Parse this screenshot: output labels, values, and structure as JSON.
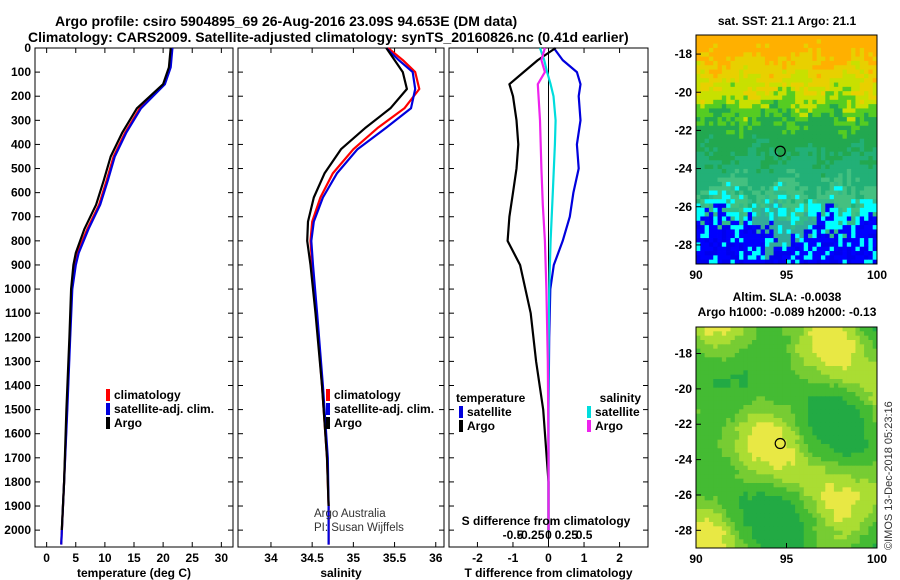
{
  "header": {
    "line1": "Argo profile: csiro 5904895_69 26-Aug-2016 23.09S 94.653E (DM data)",
    "line2": "Climatology: CARS2009. Satellite-adjusted climatology: synTS_20160826.nc (0.41d earlier)"
  },
  "colors": {
    "climatology": "#ff0000",
    "satellite": "#0000dd",
    "argo": "#000000",
    "satellite_salinity": "#00dddd",
    "argo_salinity": "#ee22ee"
  },
  "chart_data": [
    {
      "type": "line",
      "xlabel": "temperature (deg C)",
      "xlim": [
        -2,
        32
      ],
      "ylim": [
        2070,
        0
      ],
      "xticks": [
        0,
        5,
        10,
        15,
        20,
        25,
        30
      ],
      "yticks": [
        0,
        100,
        200,
        300,
        400,
        500,
        600,
        700,
        800,
        900,
        1000,
        1100,
        1200,
        1300,
        1400,
        1500,
        1600,
        1700,
        1800,
        1900,
        2000
      ],
      "legend": [
        "climatology",
        "satellite-adj. clim.",
        "Argo"
      ],
      "legend_placement": "lower-right",
      "series": [
        {
          "name": "climatology",
          "x": [
            21.5,
            21.2,
            20.2,
            16,
            13.5,
            11.5,
            10.3,
            9,
            7,
            5.3,
            4.8,
            4.3,
            4,
            3.5,
            3,
            2.5
          ],
          "y": [
            0,
            80,
            150,
            250,
            350,
            450,
            550,
            650,
            750,
            850,
            900,
            1000,
            1200,
            1500,
            1800,
            2060
          ]
        },
        {
          "name": "satellite-adj. clim.",
          "x": [
            21.6,
            21.3,
            20.3,
            16.2,
            13.7,
            11.7,
            10.5,
            9.2,
            7.2,
            5.5,
            5,
            4.4,
            4.05,
            3.55,
            3,
            2.5
          ],
          "y": [
            0,
            80,
            150,
            250,
            350,
            450,
            550,
            650,
            750,
            850,
            900,
            1000,
            1200,
            1500,
            1800,
            2060
          ]
        },
        {
          "name": "Argo",
          "x": [
            21.3,
            21,
            20,
            15.5,
            13,
            11,
            9.8,
            8.5,
            6.5,
            5,
            4.6,
            4.2,
            3.9,
            3.4,
            3,
            2.6
          ],
          "y": [
            0,
            80,
            150,
            250,
            350,
            450,
            550,
            650,
            750,
            850,
            900,
            1000,
            1200,
            1500,
            1800,
            2000
          ]
        }
      ]
    },
    {
      "type": "line",
      "xlabel": "salinity",
      "xlim": [
        33.6,
        36.1
      ],
      "ylim": [
        2070,
        0
      ],
      "xticks": [
        34,
        34.5,
        35,
        35.5,
        36
      ],
      "legend": [
        "climatology",
        "satellite-adj. clim.",
        "Argo"
      ],
      "legend_placement": "lower-right",
      "annotation": [
        "Argo Australia",
        "PI: Susan Wijffels"
      ],
      "series": [
        {
          "name": "climatology",
          "x": [
            35.42,
            35.6,
            35.75,
            35.8,
            35.62,
            35.3,
            35,
            34.75,
            34.6,
            34.5,
            34.48,
            34.5,
            34.55,
            34.62,
            34.68,
            34.7,
            34.7
          ],
          "y": [
            0,
            50,
            100,
            170,
            250,
            330,
            420,
            520,
            620,
            720,
            800,
            900,
            1100,
            1400,
            1700,
            1900,
            2060
          ]
        },
        {
          "name": "satellite-adj. clim.",
          "x": [
            35.4,
            35.55,
            35.72,
            35.75,
            35.7,
            35.4,
            35.05,
            34.8,
            34.63,
            34.52,
            34.49,
            34.51,
            34.56,
            34.63,
            34.69,
            34.7,
            34.7
          ],
          "y": [
            0,
            50,
            100,
            170,
            250,
            330,
            420,
            520,
            620,
            720,
            800,
            900,
            1100,
            1400,
            1700,
            1900,
            2060
          ]
        },
        {
          "name": "Argo",
          "x": [
            35.4,
            35.5,
            35.6,
            35.65,
            35.45,
            35.15,
            34.85,
            34.65,
            34.52,
            34.45,
            34.44,
            34.48,
            34.54,
            34.62,
            34.68,
            34.7
          ],
          "y": [
            0,
            50,
            100,
            170,
            250,
            330,
            420,
            520,
            620,
            720,
            800,
            900,
            1100,
            1400,
            1700,
            1900
          ]
        }
      ]
    },
    {
      "type": "line",
      "xlabel": "T difference from climatology",
      "xlim": [
        -2.8,
        2.8
      ],
      "ylim": [
        2070,
        0
      ],
      "xticks": [
        -2,
        -1,
        0,
        1,
        2
      ],
      "top_axis_label": "S difference from climatology",
      "top_ticks": [
        "-0.5",
        "-0.25",
        "0",
        "0.25",
        "0.5"
      ],
      "top_tick_values": [
        -0.5,
        -0.25,
        0,
        0.25,
        0.5
      ],
      "legend_left_title": "temperature",
      "legend_right_title": "salinity",
      "legend_left": [
        "satellite",
        "Argo"
      ],
      "legend_right": [
        "satellite",
        "Argo"
      ],
      "series": [
        {
          "name": "satellite",
          "x": [
            0.15,
            0.4,
            0.8,
            0.9,
            0.85,
            0.9,
            0.8,
            0.85,
            0.7,
            0.6,
            0.4,
            0.15,
            0.05,
            0.02,
            0,
            0,
            0
          ],
          "y": [
            0,
            50,
            100,
            150,
            200,
            300,
            400,
            500,
            600,
            700,
            800,
            900,
            1000,
            1200,
            1500,
            1800,
            2000
          ]
        },
        {
          "name": "Argo",
          "x": [
            0.2,
            -0.3,
            -0.7,
            -1.1,
            -1,
            -0.9,
            -0.85,
            -0.9,
            -1,
            -1.1,
            -1.15,
            -0.8,
            -0.5,
            -0.35,
            -0.15,
            0,
            0
          ],
          "y": [
            0,
            50,
            100,
            150,
            200,
            300,
            400,
            500,
            600,
            700,
            800,
            900,
            1100,
            1300,
            1500,
            1800,
            2000
          ]
        },
        {
          "name": "satellite",
          "axis": "salinity",
          "x": [
            -0.12,
            -0.06,
            -0.02,
            0.03,
            0.07,
            0.1,
            0.09,
            0.06,
            0.03,
            0.01,
            0,
            0,
            0
          ],
          "y": [
            0,
            50,
            100,
            150,
            200,
            300,
            400,
            600,
            800,
            1000,
            1300,
            1700,
            2000
          ]
        },
        {
          "name": "Argo",
          "axis": "salinity",
          "x": [
            -0.05,
            -0.1,
            -0.05,
            -0.15,
            -0.12,
            -0.1,
            -0.08,
            -0.05,
            -0.03,
            -0.01,
            0,
            0
          ],
          "y": [
            0,
            50,
            100,
            150,
            300,
            500,
            650,
            800,
            1000,
            1300,
            1700,
            2000
          ]
        }
      ]
    },
    {
      "type": "heatmap",
      "title": "sat. SST: 21.1 Argo: 21.1",
      "xlim": [
        90,
        100
      ],
      "ylim": [
        -29,
        -17
      ],
      "xticks": [
        90,
        95,
        100
      ],
      "yticks": [
        -18,
        -20,
        -22,
        -24,
        -26,
        -28
      ],
      "marker": {
        "lon": 94.653,
        "lat": -23.09
      }
    },
    {
      "type": "heatmap",
      "title": [
        "Altim. SLA: -0.0038",
        "Argo h1000: -0.089 h2000: -0.13"
      ],
      "xlim": [
        90,
        100
      ],
      "ylim": [
        -29,
        -16.5
      ],
      "xticks": [
        90,
        95,
        100
      ],
      "yticks": [
        -18,
        -20,
        -22,
        -24,
        -26,
        -28
      ],
      "marker": {
        "lon": 94.653,
        "lat": -23.09
      }
    }
  ],
  "footer": {
    "credit": "©IMOS 13-Dec-2018 05:23:16"
  }
}
